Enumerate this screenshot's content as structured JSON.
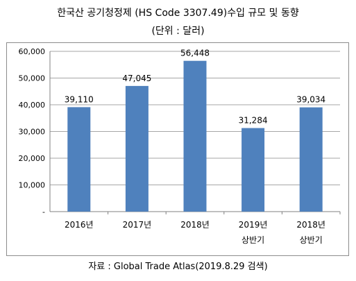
{
  "chart_data": {
    "type": "bar",
    "title": "한국산 공기청정제 (HS Code 3307.49)수입 규모 및 동향",
    "subtitle": "(단위 : 달러)",
    "categories": [
      "2016년",
      "2017년",
      "2018년",
      "2019년 상반기",
      "2018년 상반기"
    ],
    "category_lines": [
      [
        "2016년"
      ],
      [
        "2017년"
      ],
      [
        "2018년"
      ],
      [
        "2019년",
        "상반기"
      ],
      [
        "2018년",
        "상반기"
      ]
    ],
    "values": [
      39110,
      47045,
      56448,
      31284,
      39034
    ],
    "data_labels": [
      "39,110",
      "47,045",
      "56,448",
      "31,284",
      "39,034"
    ],
    "ylim": [
      0,
      60000
    ],
    "yticks": [
      0,
      10000,
      20000,
      30000,
      40000,
      50000,
      60000
    ],
    "ytick_labels": [
      "-",
      "10,000",
      "20,000",
      "30,000",
      "40,000",
      "50,000",
      "60,000"
    ],
    "grid": true,
    "legend": "none",
    "bar_color": "#4f81bd",
    "source": "자료 : Global Trade Atlas(2019.8.29 검색)"
  }
}
